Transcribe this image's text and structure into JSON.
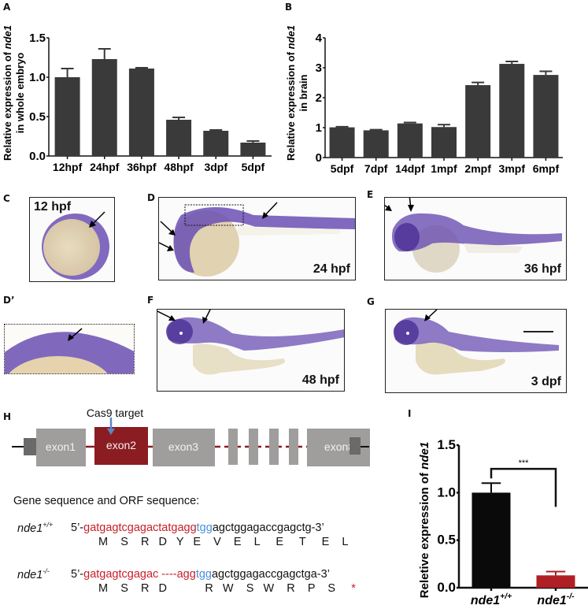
{
  "panels": {
    "A": "A",
    "B": "B",
    "C": "C",
    "D": "D",
    "Dprime": "D’",
    "E": "E",
    "F": "F",
    "G": "G",
    "H": "H",
    "I": "I"
  },
  "colors": {
    "bar_dark": "#3a3a3a",
    "bar_black": "#0a0a0a",
    "bar_red": "#b01f24",
    "exon_gray": "#a09d9d",
    "exon_red": "#8b1d22",
    "utr_gray": "#6a6a6a",
    "stain": "#5b3fa6",
    "yolk": "#e3d6b6",
    "seq_red": "#c8202a",
    "seq_blue": "#4a90d9",
    "cas9_arrow": "#5b86c8"
  },
  "chart_data": [
    {
      "type": "bar",
      "id": "A",
      "title": "",
      "ylabel_line1": "Relative expression of ",
      "ylabel_gene": "nde1",
      "ylabel_line2": "in whole embryo",
      "xlabel": "",
      "categories": [
        "12hpf",
        "24hpf",
        "36hpf",
        "48hpf",
        "3dpf",
        "5dpf"
      ],
      "values": [
        1.0,
        1.23,
        1.11,
        0.46,
        0.32,
        0.17
      ],
      "errors": [
        0.11,
        0.13,
        0.01,
        0.03,
        0.01,
        0.02
      ],
      "ylim": [
        0,
        1.5
      ],
      "yticks": [
        "0.0",
        "0.5",
        "1.0",
        "1.5"
      ],
      "ytick_values": [
        0,
        0.5,
        1.0,
        1.5
      ],
      "grid": false
    },
    {
      "type": "bar",
      "id": "B",
      "title": "",
      "ylabel_line1": "Relative expression of ",
      "ylabel_gene": "nde1",
      "ylabel_line2": "in  brain",
      "xlabel": "",
      "categories": [
        "5dpf",
        "7dpf",
        "14dpf",
        "1mpf",
        "2mpf",
        "3mpf",
        "6mpf"
      ],
      "values": [
        1.01,
        0.91,
        1.14,
        1.02,
        2.42,
        3.13,
        2.76
      ],
      "errors": [
        0.02,
        0.02,
        0.03,
        0.08,
        0.09,
        0.08,
        0.12
      ],
      "ylim": [
        0,
        4
      ],
      "yticks": [
        "0",
        "1",
        "2",
        "3",
        "4"
      ],
      "ytick_values": [
        0,
        1,
        2,
        3,
        4
      ],
      "grid": false
    },
    {
      "type": "bar",
      "id": "I",
      "title": "",
      "ylabel_line1": "Reletive expression of ",
      "ylabel_gene": "nde1",
      "xlabel": "",
      "categories": [
        {
          "base": "nde1",
          "sup": "+/+"
        },
        {
          "base": "nde1",
          "sup": "-/-"
        }
      ],
      "values": [
        1.0,
        0.13
      ],
      "errors": [
        0.1,
        0.04
      ],
      "bar_colors": [
        "#0a0a0a",
        "#b01f24"
      ],
      "ylim": [
        0,
        1.5
      ],
      "yticks": [
        "0.0",
        "0.5",
        "1.0",
        "1.5"
      ],
      "ytick_values": [
        0,
        0.5,
        1.0,
        1.5
      ],
      "significance": "***",
      "grid": false
    }
  ],
  "photos": {
    "C": {
      "stage": "12 hpf"
    },
    "D": {
      "stage": "24 hpf"
    },
    "E": {
      "stage": "36 hpf"
    },
    "F": {
      "stage": "48 hpf"
    },
    "G": {
      "stage": "3 dpf"
    }
  },
  "gene_model": {
    "cas9_label": "Cas9 target",
    "exons": [
      "exon1",
      "exon2",
      "exon3",
      "exon8"
    ]
  },
  "sequences": {
    "heading": "Gene sequence and ORF sequence:",
    "wt": {
      "genotype_base": "nde1",
      "genotype_sup": "+/+",
      "prefix": "5’-",
      "red": "gatgagtcgagactatgagg",
      "blue": "tgg",
      "black": "agctggagaccgagctg-3’",
      "aa": "M    S    R   D   Y   E    V    E    L     E     T     E    L"
    },
    "ko": {
      "genotype_base": "nde1",
      "genotype_sup": "-/-",
      "prefix": "5’-",
      "red": "gatgagtcgagac",
      "gap": " ----",
      "red2": "agg",
      "blue": "tgg",
      "black": "agctggagaccgagctga-3’",
      "aa": "M    S    R   D            R   W    S   W    R    P    S",
      "stop": "*"
    }
  }
}
